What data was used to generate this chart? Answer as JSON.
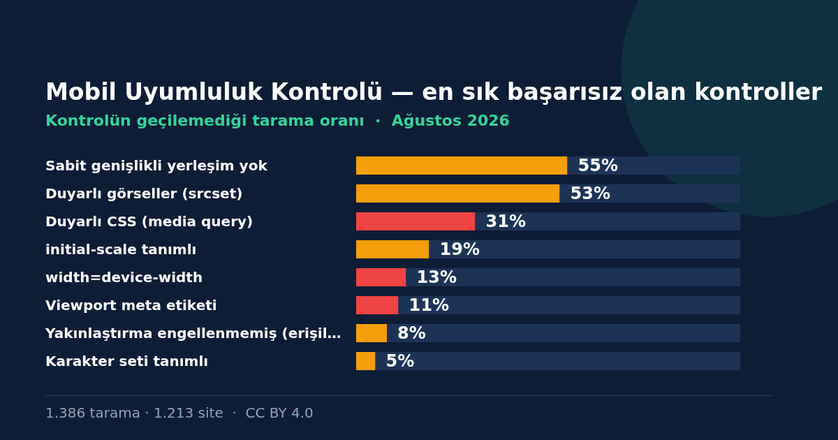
{
  "chart_data": {
    "type": "bar",
    "orientation": "horizontal",
    "stacked": true,
    "title": "Mobil Uyumluluk Kontrolü — en sık başarısız olan kontroller",
    "subtitle": "Kontrolün geçilemediği tarama oranı  ·  Ağustos 2026",
    "categories": [
      "Sabit genişlikli yerleşim yok",
      "Duyarlı görseller (srcset)",
      "Duyarlı CSS (media query)",
      "initial-scale tanımlı",
      "width=device-width",
      "Viewport meta etiketi",
      "Yakınlaştırma engellenmemiş (erişil…",
      "Karakter seti tanımlı"
    ],
    "series": [
      {
        "values": [
          55,
          53,
          31,
          19,
          13,
          11,
          8,
          5
        ],
        "colors": [
          "#f59e0b",
          "#f59e0b",
          "#ef4444",
          "#f59e0b",
          "#ef4444",
          "#ef4444",
          "#f59e0b",
          "#f59e0b"
        ],
        "value_labels": [
          "55%",
          "53%",
          "31%",
          "19%",
          "13%",
          "11%",
          "8%",
          "5%"
        ]
      },
      {
        "values": [
          45,
          47,
          69,
          81,
          87,
          89,
          92,
          95
        ],
        "color": "#1d3356"
      }
    ],
    "tick_labels": "y",
    "grid": false,
    "legend": false,
    "annotations": [
      "1.386 tarama · 1.213 site  ·  CC BY 4.0"
    ]
  }
}
